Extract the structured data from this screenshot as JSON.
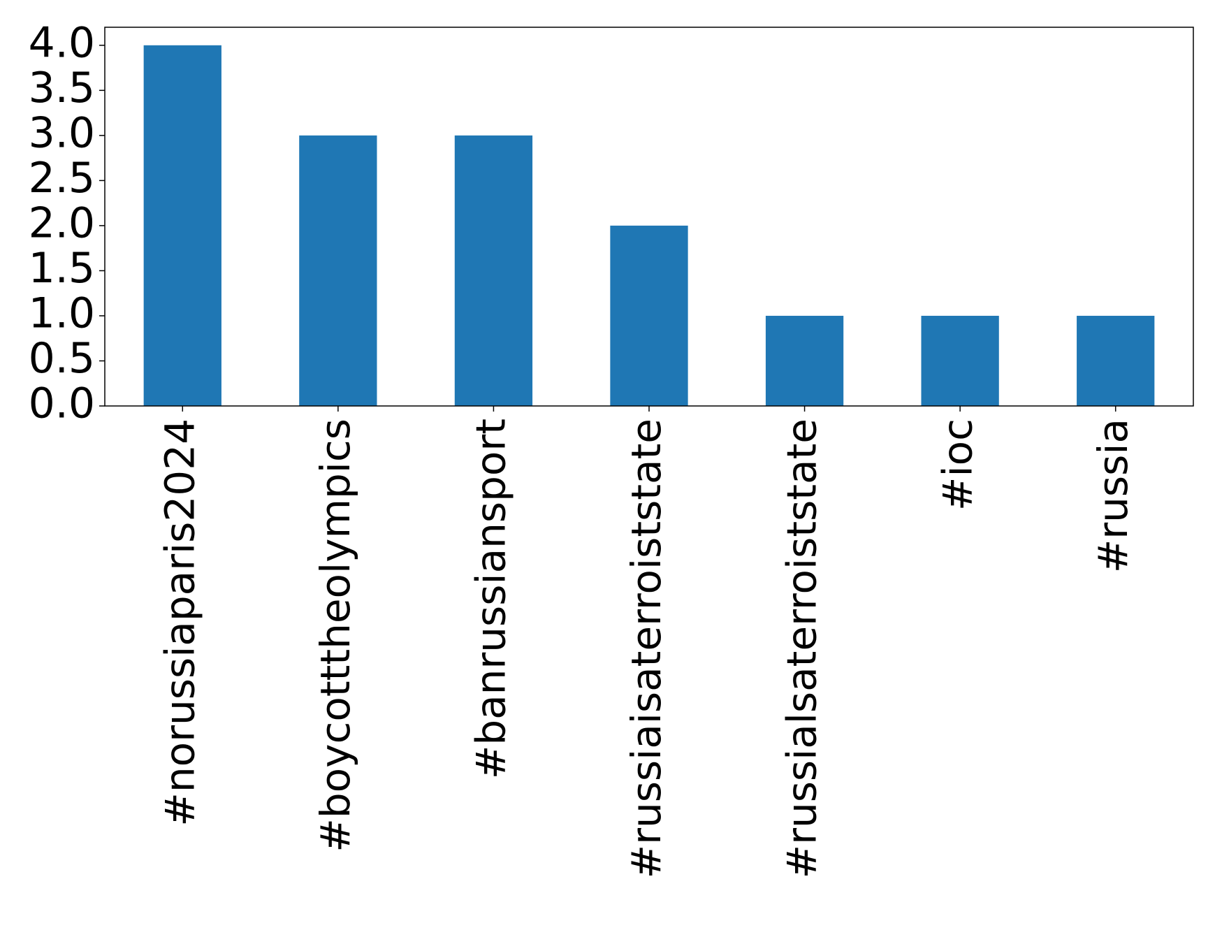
{
  "chart_data": {
    "type": "bar",
    "categories": [
      "#norussiaparis2024",
      "#boycotttheolympics",
      "#banrussiansport",
      "#russiaisaterroiststate",
      "#russialsaterroiststate",
      "#ioc",
      "#russia"
    ],
    "values": [
      4,
      3,
      3,
      2,
      1,
      1,
      1
    ],
    "color": "#1f77b4",
    "ylim": [
      0,
      4.2
    ],
    "yticks": [
      {
        "value": 0,
        "label": "0.0"
      },
      {
        "value": 0.5,
        "label": "0.5"
      },
      {
        "value": 1,
        "label": "1.0"
      },
      {
        "value": 1.5,
        "label": "1.5"
      },
      {
        "value": 2,
        "label": "2.0"
      },
      {
        "value": 2.5,
        "label": "2.5"
      },
      {
        "value": 3,
        "label": "3.0"
      },
      {
        "value": 3.5,
        "label": "3.5"
      },
      {
        "value": 4,
        "label": "4.0"
      }
    ],
    "grid": false
  }
}
